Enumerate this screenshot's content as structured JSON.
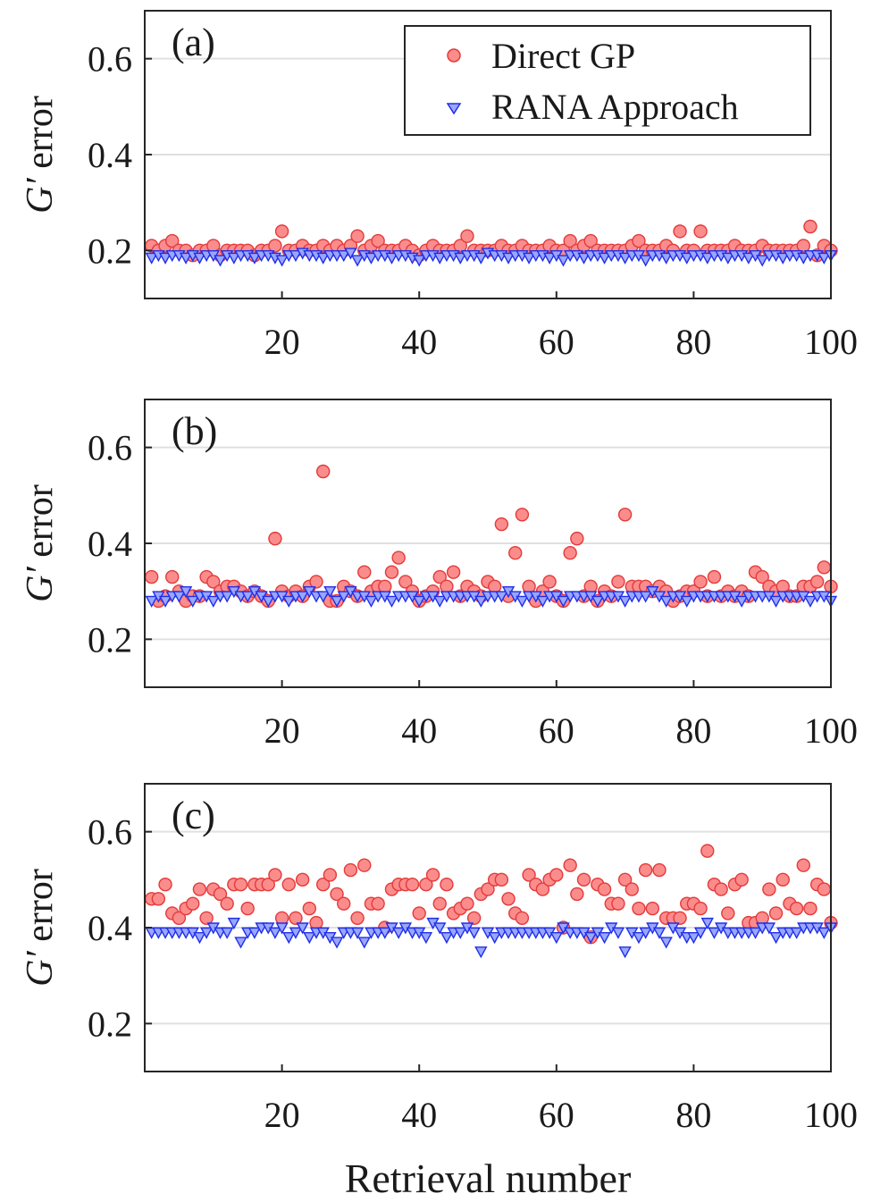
{
  "colors": {
    "direct_fill": "#fb8c8c",
    "direct_edge": "#e43a3a",
    "rana_fill": "#9aa6ff",
    "rana_edge": "#1f2fe8",
    "grid": "#e0e0e0",
    "axis": "#262626"
  },
  "legend": {
    "direct": "Direct GP",
    "rana": "RANA Approach"
  },
  "xlabel": "Retrieval number",
  "chart_data": [
    {
      "type": "scatter",
      "panel_label": "(a)",
      "ylabel_symbol": "G′",
      "ylabel_rest": " error",
      "xlim": [
        0,
        100
      ],
      "ylim": [
        0.1,
        0.7
      ],
      "xticks": [
        20,
        40,
        60,
        80,
        100
      ],
      "yticks": [
        0.2,
        0.4,
        0.6
      ],
      "ytick_labels": [
        "0.2",
        "0.4",
        "0.6"
      ],
      "x": [
        1,
        2,
        3,
        4,
        5,
        6,
        7,
        8,
        9,
        10,
        11,
        12,
        13,
        14,
        15,
        16,
        17,
        18,
        19,
        20,
        21,
        22,
        23,
        24,
        25,
        26,
        27,
        28,
        29,
        30,
        31,
        32,
        33,
        34,
        35,
        36,
        37,
        38,
        39,
        40,
        41,
        42,
        43,
        44,
        45,
        46,
        47,
        48,
        49,
        50,
        51,
        52,
        53,
        54,
        55,
        56,
        57,
        58,
        59,
        60,
        61,
        62,
        63,
        64,
        65,
        66,
        67,
        68,
        69,
        70,
        71,
        72,
        73,
        74,
        75,
        76,
        77,
        78,
        79,
        80,
        81,
        82,
        83,
        84,
        85,
        86,
        87,
        88,
        89,
        90,
        91,
        92,
        93,
        94,
        95,
        96,
        97,
        98,
        99,
        100
      ],
      "series": [
        {
          "name": "Direct GP",
          "values": [
            0.21,
            0.2,
            0.21,
            0.22,
            0.2,
            0.2,
            0.19,
            0.2,
            0.2,
            0.21,
            0.19,
            0.2,
            0.2,
            0.2,
            0.2,
            0.19,
            0.2,
            0.2,
            0.21,
            0.24,
            0.2,
            0.2,
            0.21,
            0.2,
            0.2,
            0.21,
            0.2,
            0.21,
            0.2,
            0.21,
            0.23,
            0.2,
            0.21,
            0.22,
            0.2,
            0.2,
            0.2,
            0.21,
            0.2,
            0.19,
            0.2,
            0.21,
            0.2,
            0.2,
            0.2,
            0.21,
            0.23,
            0.2,
            0.2,
            0.2,
            0.2,
            0.21,
            0.2,
            0.2,
            0.21,
            0.2,
            0.2,
            0.2,
            0.21,
            0.2,
            0.2,
            0.22,
            0.2,
            0.21,
            0.22,
            0.2,
            0.2,
            0.2,
            0.2,
            0.2,
            0.21,
            0.22,
            0.2,
            0.2,
            0.2,
            0.21,
            0.2,
            0.24,
            0.2,
            0.2,
            0.24,
            0.2,
            0.2,
            0.2,
            0.2,
            0.21,
            0.2,
            0.2,
            0.2,
            0.21,
            0.2,
            0.2,
            0.2,
            0.2,
            0.2,
            0.21,
            0.25,
            0.19,
            0.21,
            0.2
          ]
        },
        {
          "name": "RANA Approach",
          "values": [
            0.185,
            0.19,
            0.185,
            0.19,
            0.19,
            0.185,
            0.19,
            0.185,
            0.19,
            0.19,
            0.18,
            0.19,
            0.185,
            0.19,
            0.19,
            0.185,
            0.19,
            0.19,
            0.185,
            0.18,
            0.19,
            0.19,
            0.195,
            0.19,
            0.19,
            0.185,
            0.19,
            0.19,
            0.19,
            0.195,
            0.18,
            0.19,
            0.185,
            0.19,
            0.19,
            0.185,
            0.19,
            0.19,
            0.185,
            0.18,
            0.19,
            0.19,
            0.185,
            0.19,
            0.19,
            0.185,
            0.19,
            0.19,
            0.185,
            0.195,
            0.19,
            0.19,
            0.185,
            0.19,
            0.19,
            0.185,
            0.19,
            0.19,
            0.185,
            0.19,
            0.18,
            0.19,
            0.19,
            0.185,
            0.19,
            0.19,
            0.185,
            0.19,
            0.19,
            0.185,
            0.19,
            0.19,
            0.18,
            0.19,
            0.19,
            0.185,
            0.19,
            0.19,
            0.185,
            0.19,
            0.19,
            0.185,
            0.19,
            0.19,
            0.185,
            0.19,
            0.19,
            0.185,
            0.19,
            0.18,
            0.19,
            0.19,
            0.185,
            0.19,
            0.19,
            0.185,
            0.19,
            0.19,
            0.185,
            0.19
          ]
        }
      ]
    },
    {
      "type": "scatter",
      "panel_label": "(b)",
      "ylabel_symbol": "G′",
      "ylabel_rest": " error",
      "xlim": [
        0,
        100
      ],
      "ylim": [
        0.1,
        0.7
      ],
      "xticks": [
        20,
        40,
        60,
        80,
        100
      ],
      "yticks": [
        0.2,
        0.4,
        0.6
      ],
      "ytick_labels": [
        "0.2",
        "0.4",
        "0.6"
      ],
      "x": [
        1,
        2,
        3,
        4,
        5,
        6,
        7,
        8,
        9,
        10,
        11,
        12,
        13,
        14,
        15,
        16,
        17,
        18,
        19,
        20,
        21,
        22,
        23,
        24,
        25,
        26,
        27,
        28,
        29,
        30,
        31,
        32,
        33,
        34,
        35,
        36,
        37,
        38,
        39,
        40,
        41,
        42,
        43,
        44,
        45,
        46,
        47,
        48,
        49,
        50,
        51,
        52,
        53,
        54,
        55,
        56,
        57,
        58,
        59,
        60,
        61,
        62,
        63,
        64,
        65,
        66,
        67,
        68,
        69,
        70,
        71,
        72,
        73,
        74,
        75,
        76,
        77,
        78,
        79,
        80,
        81,
        82,
        83,
        84,
        85,
        86,
        87,
        88,
        89,
        90,
        91,
        92,
        93,
        94,
        95,
        96,
        97,
        98,
        99,
        100
      ],
      "series": [
        {
          "name": "Direct GP",
          "values": [
            0.33,
            0.28,
            0.29,
            0.33,
            0.3,
            0.28,
            0.29,
            0.29,
            0.33,
            0.32,
            0.3,
            0.31,
            0.31,
            0.3,
            0.29,
            0.3,
            0.29,
            0.28,
            0.41,
            0.3,
            0.29,
            0.3,
            0.29,
            0.31,
            0.32,
            0.55,
            0.28,
            0.28,
            0.31,
            0.3,
            0.29,
            0.34,
            0.3,
            0.31,
            0.31,
            0.34,
            0.37,
            0.32,
            0.3,
            0.28,
            0.29,
            0.3,
            0.33,
            0.31,
            0.34,
            0.29,
            0.31,
            0.3,
            0.29,
            0.32,
            0.31,
            0.44,
            0.29,
            0.38,
            0.46,
            0.31,
            0.28,
            0.3,
            0.32,
            0.29,
            0.28,
            0.38,
            0.41,
            0.29,
            0.31,
            0.28,
            0.3,
            0.29,
            0.32,
            0.46,
            0.31,
            0.31,
            0.31,
            0.3,
            0.31,
            0.3,
            0.28,
            0.29,
            0.3,
            0.3,
            0.32,
            0.29,
            0.33,
            0.29,
            0.3,
            0.29,
            0.3,
            0.29,
            0.34,
            0.33,
            0.31,
            0.3,
            0.31,
            0.29,
            0.29,
            0.31,
            0.31,
            0.32,
            0.35,
            0.31
          ]
        },
        {
          "name": "RANA Approach",
          "values": [
            0.28,
            0.29,
            0.28,
            0.29,
            0.29,
            0.3,
            0.28,
            0.29,
            0.29,
            0.28,
            0.29,
            0.29,
            0.3,
            0.29,
            0.29,
            0.3,
            0.29,
            0.28,
            0.29,
            0.29,
            0.28,
            0.29,
            0.29,
            0.3,
            0.29,
            0.29,
            0.3,
            0.28,
            0.29,
            0.3,
            0.29,
            0.29,
            0.28,
            0.29,
            0.29,
            0.28,
            0.29,
            0.29,
            0.29,
            0.28,
            0.29,
            0.29,
            0.28,
            0.29,
            0.29,
            0.29,
            0.29,
            0.29,
            0.28,
            0.29,
            0.29,
            0.29,
            0.3,
            0.29,
            0.28,
            0.29,
            0.29,
            0.28,
            0.29,
            0.29,
            0.28,
            0.29,
            0.29,
            0.29,
            0.29,
            0.28,
            0.29,
            0.29,
            0.29,
            0.28,
            0.29,
            0.29,
            0.29,
            0.3,
            0.29,
            0.28,
            0.29,
            0.29,
            0.28,
            0.29,
            0.29,
            0.29,
            0.29,
            0.29,
            0.29,
            0.29,
            0.28,
            0.29,
            0.29,
            0.29,
            0.29,
            0.28,
            0.29,
            0.29,
            0.29,
            0.29,
            0.28,
            0.29,
            0.29,
            0.28
          ]
        }
      ]
    },
    {
      "type": "scatter",
      "panel_label": "(c)",
      "ylabel_symbol": "G′",
      "ylabel_rest": " error",
      "xlim": [
        0,
        100
      ],
      "ylim": [
        0.1,
        0.7
      ],
      "xticks": [
        20,
        40,
        60,
        80,
        100
      ],
      "yticks": [
        0.2,
        0.4,
        0.6
      ],
      "ytick_labels": [
        "0.2",
        "0.4",
        "0.6"
      ],
      "x": [
        1,
        2,
        3,
        4,
        5,
        6,
        7,
        8,
        9,
        10,
        11,
        12,
        13,
        14,
        15,
        16,
        17,
        18,
        19,
        20,
        21,
        22,
        23,
        24,
        25,
        26,
        27,
        28,
        29,
        30,
        31,
        32,
        33,
        34,
        35,
        36,
        37,
        38,
        39,
        40,
        41,
        42,
        43,
        44,
        45,
        46,
        47,
        48,
        49,
        50,
        51,
        52,
        53,
        54,
        55,
        56,
        57,
        58,
        59,
        60,
        61,
        62,
        63,
        64,
        65,
        66,
        67,
        68,
        69,
        70,
        71,
        72,
        73,
        74,
        75,
        76,
        77,
        78,
        79,
        80,
        81,
        82,
        83,
        84,
        85,
        86,
        87,
        88,
        89,
        90,
        91,
        92,
        93,
        94,
        95,
        96,
        97,
        98,
        99,
        100
      ],
      "series": [
        {
          "name": "Direct GP",
          "values": [
            0.46,
            0.46,
            0.49,
            0.43,
            0.42,
            0.44,
            0.45,
            0.48,
            0.42,
            0.48,
            0.47,
            0.45,
            0.49,
            0.49,
            0.44,
            0.49,
            0.49,
            0.49,
            0.51,
            0.42,
            0.49,
            0.42,
            0.5,
            0.44,
            0.41,
            0.49,
            0.51,
            0.47,
            0.45,
            0.52,
            0.42,
            0.53,
            0.45,
            0.45,
            0.4,
            0.48,
            0.49,
            0.49,
            0.49,
            0.43,
            0.49,
            0.51,
            0.45,
            0.49,
            0.43,
            0.44,
            0.45,
            0.42,
            0.47,
            0.48,
            0.5,
            0.5,
            0.46,
            0.43,
            0.42,
            0.51,
            0.49,
            0.48,
            0.5,
            0.51,
            0.4,
            0.53,
            0.47,
            0.5,
            0.38,
            0.49,
            0.48,
            0.45,
            0.45,
            0.5,
            0.48,
            0.44,
            0.52,
            0.44,
            0.52,
            0.42,
            0.42,
            0.42,
            0.45,
            0.45,
            0.44,
            0.56,
            0.49,
            0.48,
            0.43,
            0.49,
            0.5,
            0.41,
            0.41,
            0.42,
            0.48,
            0.43,
            0.5,
            0.45,
            0.44,
            0.53,
            0.44,
            0.49,
            0.48,
            0.41
          ]
        },
        {
          "name": "RANA Approach",
          "values": [
            0.39,
            0.39,
            0.39,
            0.39,
            0.39,
            0.39,
            0.39,
            0.38,
            0.39,
            0.4,
            0.39,
            0.39,
            0.41,
            0.37,
            0.39,
            0.39,
            0.4,
            0.4,
            0.39,
            0.4,
            0.38,
            0.39,
            0.4,
            0.38,
            0.39,
            0.39,
            0.38,
            0.37,
            0.39,
            0.39,
            0.39,
            0.37,
            0.39,
            0.39,
            0.39,
            0.4,
            0.39,
            0.4,
            0.39,
            0.39,
            0.38,
            0.41,
            0.4,
            0.38,
            0.39,
            0.39,
            0.4,
            0.39,
            0.35,
            0.39,
            0.38,
            0.39,
            0.39,
            0.39,
            0.39,
            0.39,
            0.39,
            0.39,
            0.39,
            0.38,
            0.4,
            0.39,
            0.39,
            0.39,
            0.38,
            0.39,
            0.38,
            0.4,
            0.39,
            0.35,
            0.39,
            0.38,
            0.39,
            0.4,
            0.39,
            0.37,
            0.4,
            0.39,
            0.38,
            0.38,
            0.39,
            0.41,
            0.39,
            0.4,
            0.39,
            0.39,
            0.39,
            0.39,
            0.39,
            0.4,
            0.4,
            0.38,
            0.39,
            0.39,
            0.39,
            0.4,
            0.4,
            0.4,
            0.39,
            0.4
          ]
        }
      ]
    }
  ]
}
